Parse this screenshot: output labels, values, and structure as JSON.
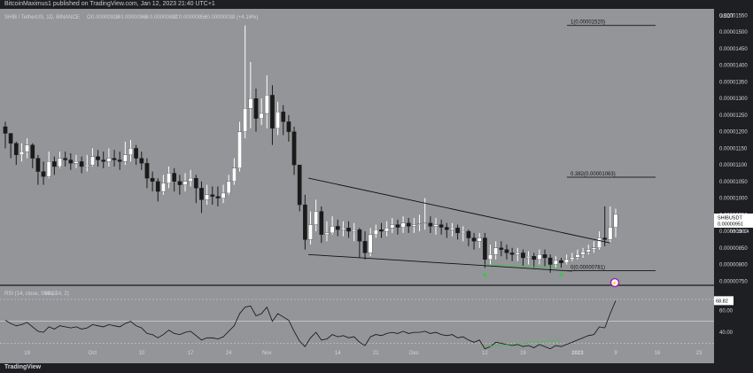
{
  "header": {
    "published": "BitcoinMaximus1 published on TradingView.com, Jan 12, 2023 21:40 UTC+1",
    "symbol_line": "SHIB / TetherUS, 1D, BINANCE",
    "ohlc": {
      "o_label": "O",
      "o_value": "0.00000912",
      "h_label": "H",
      "h_value": "0.00000968",
      "l_label": "L",
      "l_value": "0.00000882",
      "c_label": "C",
      "c_value": "0.00000951",
      "change": "+0.00000038 (+4.16%)"
    }
  },
  "footer": {
    "brand": "TradingView"
  },
  "colors": {
    "background": "#1e1f22",
    "plot": "#939598",
    "candle_up": "#ffffff",
    "candle_down": "#1a1a1a",
    "line": "#111111",
    "divergence": "#2ecc40",
    "axis_text": "#d1d4dc"
  },
  "chart_data": [
    {
      "type": "candlestick",
      "symbol": "SHIBUSDT",
      "currency": "USDT",
      "ylim": [
        7.4e-06,
        1.57e-05
      ],
      "y_ticks": [
        "0.00001550",
        "0.00001500",
        "0.00001450",
        "0.00001400",
        "0.00001350",
        "0.00001300",
        "0.00001250",
        "0.00001200",
        "0.00001150",
        "0.00001100",
        "0.00001050",
        "0.00001000",
        "0.00000950",
        "0.00000900",
        "0.00000850",
        "0.00000800",
        "0.00000750"
      ],
      "x_ticks": [
        "19",
        "Oct",
        "10",
        "17",
        "24",
        "Nov",
        "14",
        "21",
        "Dec",
        "12",
        "19",
        "2023",
        "9",
        "16",
        "23"
      ],
      "last_price_label": "SHIBUSDT",
      "last_price": "0.00000951",
      "countdown": "03:19:14",
      "fib_levels": [
        {
          "label": "1(0.00001520)",
          "value": 1.52e-05
        },
        {
          "label": "0.382(0.00001063)",
          "value": 1.063e-05
        },
        {
          "label": "0(0.00000781)",
          "value": 7.81e-06
        }
      ],
      "pattern": "descending wedge",
      "wedge_upper": [
        {
          "x": "Nov 8",
          "y": 1.06e-05
        },
        {
          "x": "Jan 10",
          "y": 8.65e-06
        }
      ],
      "wedge_lower": [
        {
          "x": "Nov 8",
          "y": 8.3e-06
        },
        {
          "x": "Jan 2",
          "y": 7.8e-06
        }
      ],
      "bullish_divergence_markers": [
        "Dec 16",
        "Dec 30"
      ],
      "candles_close": [
        1.195e-05,
        1.165e-05,
        1.13e-05,
        1.14e-05,
        1.16e-05,
        1.12e-05,
        1.08e-05,
        1.065e-05,
        1.11e-05,
        1.095e-05,
        1.12e-05,
        1.115e-05,
        1.105e-05,
        1.11e-05,
        1.095e-05,
        1.1e-05,
        1.125e-05,
        1.115e-05,
        1.11e-05,
        1.12e-05,
        1.115e-05,
        1.11e-05,
        1.13e-05,
        1.15e-05,
        1.12e-05,
        1.105e-05,
        1.06e-05,
        1.05e-05,
        1.02e-05,
        1.045e-05,
        1.075e-05,
        1.05e-05,
        1.04e-05,
        1.05e-05,
        1.06e-05,
        1.03e-05,
        9.95e-06,
        1.01e-05,
        1.005e-05,
        1e-05,
        1.015e-05,
        1.05e-05,
        1.09e-05,
        1.2e-05,
        1.27e-05,
        1.3e-05,
        1.24e-05,
        1.255e-05,
        1.31e-05,
        1.21e-05,
        1.26e-05,
        1.23e-05,
        1.2e-05,
        1.1e-05,
        9.8e-06,
        8.75e-06,
        9.2e-06,
        9.6e-06,
        8.9e-06,
        8.95e-06,
        9.15e-06,
        9.05e-06,
        9.1e-06,
        9e-06,
        9.05e-06,
        8.7e-06,
        8.35e-06,
        8.9e-06,
        9.05e-06,
        9e-06,
        9.1e-06,
        9.2e-06,
        9.12e-06,
        9.25e-06,
        9.15e-06,
        9.2e-06,
        9.22e-06,
        9.25e-06,
        9.15e-06,
        9.2e-06,
        9.12e-06,
        9.05e-06,
        9.1e-06,
        8.95e-06,
        9e-06,
        8.8e-06,
        8.7e-06,
        8.8e-06,
        8.15e-06,
        8.3e-06,
        8.5e-06,
        8.45e-06,
        8.35e-06,
        8.3e-06,
        8.35e-06,
        8.2e-06,
        8.25e-06,
        8.15e-06,
        8.3e-06,
        8.2e-06,
        8e-06,
        8.12e-06,
        8.05e-06,
        8.15e-06,
        8.22e-06,
        8.3e-06,
        8.38e-06,
        8.45e-06,
        8.5e-06,
        8.8e-06,
        8.75e-06,
        9.12e-06,
        9.51e-06
      ],
      "candles_high": [
        1.23e-05,
        1.195e-05,
        1.17e-05,
        1.165e-05,
        1.18e-05,
        1.165e-05,
        1.13e-05,
        1.11e-05,
        1.14e-05,
        1.125e-05,
        1.14e-05,
        1.14e-05,
        1.135e-05,
        1.13e-05,
        1.125e-05,
        1.13e-05,
        1.15e-05,
        1.145e-05,
        1.14e-05,
        1.15e-05,
        1.145e-05,
        1.14e-05,
        1.17e-05,
        1.175e-05,
        1.16e-05,
        1.14e-05,
        1.12e-05,
        1.08e-05,
        1.06e-05,
        1.07e-05,
        1.095e-05,
        1.09e-05,
        1.07e-05,
        1.075e-05,
        1.085e-05,
        1.07e-05,
        1.05e-05,
        1.04e-05,
        1.035e-05,
        1.035e-05,
        1.04e-05,
        1.07e-05,
        1.12e-05,
        1.23e-05,
        1.52e-05,
        1.41e-05,
        1.33e-05,
        1.3e-05,
        1.37e-05,
        1.34e-05,
        1.29e-05,
        1.28e-05,
        1.25e-05,
        1.215e-05,
        1.1e-05,
        1.01e-05,
        9.6e-06,
        9.95e-06,
        9.75e-06,
        9.3e-06,
        9.45e-06,
        9.35e-06,
        9.3e-06,
        9.3e-06,
        9.25e-06,
        9.1e-06,
        9e-06,
        9.1e-06,
        9.2e-06,
        9.25e-06,
        9.3e-06,
        9.4e-06,
        9.35e-06,
        9.45e-06,
        9.4e-06,
        9.4e-06,
        9.5e-06,
        1e-05,
        9.45e-06,
        9.4e-06,
        9.35e-06,
        9.25e-06,
        9.25e-06,
        9.2e-06,
        9.15e-06,
        9.05e-06,
        8.95e-06,
        8.95e-06,
        8.95e-06,
        8.6e-06,
        8.7e-06,
        8.7e-06,
        8.6e-06,
        8.5e-06,
        8.5e-06,
        8.45e-06,
        8.4e-06,
        8.35e-06,
        8.45e-06,
        8.45e-06,
        8.3e-06,
        8.25e-06,
        8.2e-06,
        8.3e-06,
        8.35e-06,
        8.45e-06,
        8.5e-06,
        8.6e-06,
        8.7e-06,
        9e-06,
        9.75e-06,
        9.75e-06,
        9.68e-06
      ],
      "candles_low": [
        1.15e-05,
        1.12e-05,
        1.1e-05,
        1.11e-05,
        1.12e-05,
        1.09e-05,
        1.04e-05,
        1.04e-05,
        1.06e-05,
        1.07e-05,
        1.09e-05,
        1.095e-05,
        1.085e-05,
        1.09e-05,
        1.075e-05,
        1.08e-05,
        1.095e-05,
        1.095e-05,
        1.09e-05,
        1.095e-05,
        1.095e-05,
        1.085e-05,
        1.1e-05,
        1.11e-05,
        1.1e-05,
        1.085e-05,
        1.03e-05,
        1.02e-05,
        9.9e-06,
        1.01e-05,
        1.03e-05,
        1.02e-05,
        1.01e-05,
        1.02e-05,
        1.035e-05,
        9.85e-06,
        9.55e-06,
        9.8e-06,
        9.8e-06,
        9.75e-06,
        9.85e-06,
        1.01e-05,
        1.04e-05,
        1.08e-05,
        1.18e-05,
        1.21e-05,
        1.2e-05,
        1.22e-05,
        1.21e-05,
        1.16e-05,
        1.19e-05,
        1.19e-05,
        1.17e-05,
        1.07e-05,
        9.6e-06,
        8.45e-06,
        8.6e-06,
        9e-06,
        8.65e-06,
        8.7e-06,
        8.9e-06,
        8.85e-06,
        8.85e-06,
        8.8e-06,
        8.7e-06,
        8.2e-06,
        8.15e-06,
        8.25e-06,
        8.8e-06,
        8.8e-06,
        8.85e-06,
        8.95e-06,
        8.9e-06,
        8.95e-06,
        8.95e-06,
        8.95e-06,
        9e-06,
        9.05e-06,
        8.95e-06,
        8.9e-06,
        8.9e-06,
        8.8e-06,
        8.85e-06,
        8.75e-06,
        8.7e-06,
        8.55e-06,
        8.45e-06,
        8.5e-06,
        7.9e-06,
        8e-06,
        8.15e-06,
        8.25e-06,
        8.15e-06,
        8.1e-06,
        8.1e-06,
        7.95e-06,
        8e-06,
        7.9e-06,
        8e-06,
        7.95e-06,
        7.75e-06,
        7.9e-06,
        7.9e-06,
        8e-06,
        8.1e-06,
        8.15e-06,
        8.2e-06,
        8.3e-06,
        8.35e-06,
        8.45e-06,
        8.55e-06,
        8.65e-06,
        8.82e-06
      ]
    },
    {
      "type": "line",
      "name": "RSI",
      "legend": "RSI (14, close, SMA, 14, 2)",
      "last_value": "68.82",
      "ylim": [
        28,
        82
      ],
      "y_ticks": [
        "60.00",
        "40.00"
      ],
      "bands": [
        70,
        30
      ],
      "values": [
        51,
        48,
        46,
        47,
        49,
        45,
        41,
        40,
        45,
        43,
        46,
        45,
        44,
        45,
        43,
        44,
        47,
        46,
        45,
        47,
        46,
        45,
        48,
        50,
        46,
        44,
        39,
        38,
        35,
        38,
        42,
        39,
        38,
        40,
        41,
        37,
        33,
        35,
        35,
        34,
        36,
        41,
        46,
        57,
        63,
        64,
        55,
        57,
        63,
        50,
        57,
        54,
        51,
        41,
        32,
        27,
        35,
        40,
        33,
        34,
        38,
        36,
        37,
        35,
        36,
        31,
        28,
        36,
        38,
        37,
        39,
        40,
        39,
        41,
        39,
        40,
        40,
        41,
        39,
        40,
        38,
        37,
        38,
        35,
        36,
        33,
        31,
        33,
        25,
        27,
        31,
        30,
        29,
        28,
        29,
        27,
        28,
        26,
        29,
        27,
        25,
        28,
        27,
        29,
        31,
        33,
        35,
        37,
        38,
        45,
        44,
        57,
        68.82
      ],
      "divergence_markers": [
        "Dec 16",
        "Dec 30"
      ]
    }
  ]
}
